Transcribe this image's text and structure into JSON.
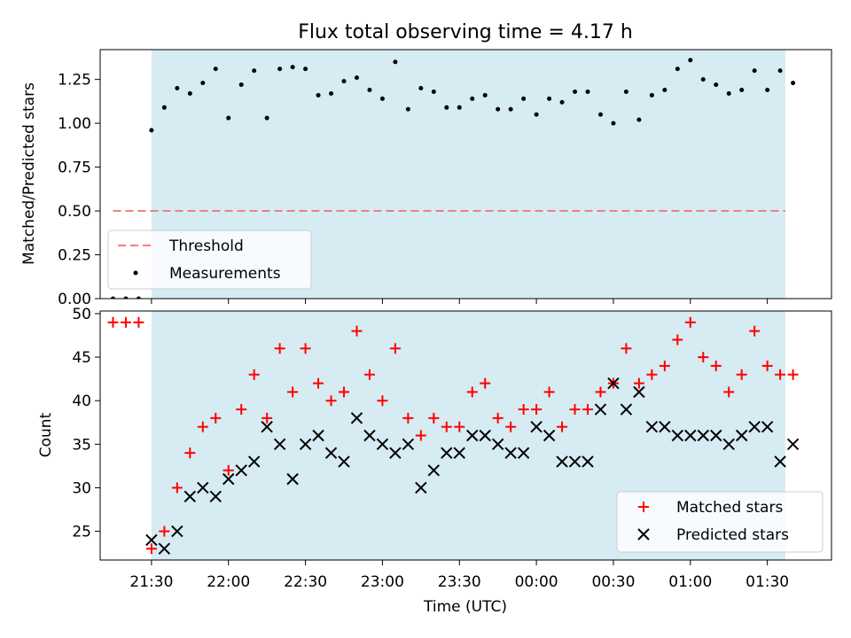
{
  "chart_data": [
    {
      "type": "scatter",
      "title": "Flux total observing time = 4.17 h",
      "xlabel": "",
      "ylabel": "Matched/Predicted stars",
      "xlim": [
        "21:10",
        "01:55"
      ],
      "ylim": [
        0,
        1.42
      ],
      "yticks": [
        "0.00",
        "0.25",
        "0.50",
        "0.75",
        "1.00",
        "1.25"
      ],
      "grid": false,
      "legend_position": "lower-left",
      "shaded_span": [
        "21:30",
        "01:37"
      ],
      "threshold": {
        "name": "Threshold",
        "value": 0.5,
        "from": "21:15",
        "to": "01:37",
        "color": "#f08080"
      },
      "series": [
        {
          "name": "Measurements",
          "color": "#000000",
          "x": [
            "21:15",
            "21:20",
            "21:25",
            "21:30",
            "21:35",
            "21:40",
            "21:45",
            "21:50",
            "21:55",
            "22:00",
            "22:05",
            "22:10",
            "22:15",
            "22:20",
            "22:25",
            "22:30",
            "22:35",
            "22:40",
            "22:45",
            "22:50",
            "22:55",
            "23:00",
            "23:05",
            "23:10",
            "23:15",
            "23:20",
            "23:25",
            "23:30",
            "23:35",
            "23:40",
            "23:45",
            "23:50",
            "23:55",
            "00:00",
            "00:05",
            "00:10",
            "00:15",
            "00:20",
            "00:25",
            "00:30",
            "00:35",
            "00:40",
            "00:45",
            "00:50",
            "00:55",
            "01:00",
            "01:05",
            "01:10",
            "01:15",
            "01:20",
            "01:25",
            "01:30",
            "01:35",
            "01:40"
          ],
          "values": [
            0,
            0,
            0,
            0.96,
            1.09,
            1.2,
            1.17,
            1.23,
            1.31,
            1.03,
            1.22,
            1.3,
            1.03,
            1.31,
            1.32,
            1.31,
            1.16,
            1.17,
            1.24,
            1.26,
            1.19,
            1.14,
            1.35,
            1.08,
            1.2,
            1.18,
            1.09,
            1.09,
            1.14,
            1.16,
            1.08,
            1.08,
            1.14,
            1.05,
            1.14,
            1.12,
            1.18,
            1.18,
            1.05,
            1.0,
            1.18,
            1.02,
            1.16,
            1.19,
            1.31,
            1.36,
            1.25,
            1.22,
            1.17,
            1.19,
            1.3,
            1.19,
            1.3,
            1.23
          ]
        }
      ]
    },
    {
      "type": "scatter",
      "title": "",
      "xlabel": "Time (UTC)",
      "ylabel": "Count",
      "xlim": [
        "21:10",
        "01:55"
      ],
      "ylim": [
        21.7,
        50.3
      ],
      "yticks": [
        "25",
        "30",
        "35",
        "40",
        "45",
        "50"
      ],
      "xticks": [
        "21:30",
        "22:00",
        "22:30",
        "23:00",
        "23:30",
        "00:00",
        "00:30",
        "01:00",
        "01:30"
      ],
      "grid": false,
      "legend_position": "lower-right",
      "shaded_span": [
        "21:30",
        "01:37"
      ],
      "series": [
        {
          "name": "Matched stars",
          "color": "#ff0000",
          "marker": "+",
          "x": [
            "21:15",
            "21:20",
            "21:25",
            "21:30",
            "21:35",
            "21:40",
            "21:45",
            "21:50",
            "21:55",
            "22:00",
            "22:05",
            "22:10",
            "22:15",
            "22:20",
            "22:25",
            "22:30",
            "22:35",
            "22:40",
            "22:45",
            "22:50",
            "22:55",
            "23:00",
            "23:05",
            "23:10",
            "23:15",
            "23:20",
            "23:25",
            "23:30",
            "23:35",
            "23:40",
            "23:45",
            "23:50",
            "23:55",
            "00:00",
            "00:05",
            "00:10",
            "00:15",
            "00:20",
            "00:25",
            "00:30",
            "00:35",
            "00:40",
            "00:45",
            "00:50",
            "00:55",
            "01:00",
            "01:05",
            "01:10",
            "01:15",
            "01:20",
            "01:25",
            "01:30",
            "01:35",
            "01:40"
          ],
          "values": [
            49,
            49,
            49,
            23,
            25,
            30,
            34,
            37,
            38,
            32,
            39,
            43,
            38,
            46,
            41,
            46,
            42,
            40,
            41,
            48,
            43,
            40,
            46,
            38,
            36,
            38,
            37,
            37,
            41,
            42,
            38,
            37,
            39,
            39,
            41,
            37,
            39,
            39,
            41,
            42,
            46,
            42,
            43,
            44,
            47,
            49,
            45,
            44,
            41,
            43,
            48,
            44,
            43,
            43
          ]
        },
        {
          "name": "Predicted stars",
          "color": "#000000",
          "marker": "x",
          "x": [
            "21:30",
            "21:35",
            "21:40",
            "21:45",
            "21:50",
            "21:55",
            "22:00",
            "22:05",
            "22:10",
            "22:15",
            "22:20",
            "22:25",
            "22:30",
            "22:35",
            "22:40",
            "22:45",
            "22:50",
            "22:55",
            "23:00",
            "23:05",
            "23:10",
            "23:15",
            "23:20",
            "23:25",
            "23:30",
            "23:35",
            "23:40",
            "23:45",
            "23:50",
            "23:55",
            "00:00",
            "00:05",
            "00:10",
            "00:15",
            "00:20",
            "00:25",
            "00:30",
            "00:35",
            "00:40",
            "00:45",
            "00:50",
            "00:55",
            "01:00",
            "01:05",
            "01:10",
            "01:15",
            "01:20",
            "01:25",
            "01:30",
            "01:35",
            "01:40"
          ],
          "values": [
            24,
            23,
            25,
            29,
            30,
            29,
            31,
            32,
            33,
            37,
            35,
            31,
            35,
            36,
            34,
            33,
            38,
            36,
            35,
            34,
            35,
            30,
            32,
            34,
            34,
            36,
            36,
            35,
            34,
            34,
            37,
            36,
            33,
            33,
            33,
            39,
            42,
            39,
            41,
            37,
            37,
            36,
            36,
            36,
            36,
            35,
            36,
            37,
            37,
            33,
            35
          ]
        }
      ]
    }
  ]
}
